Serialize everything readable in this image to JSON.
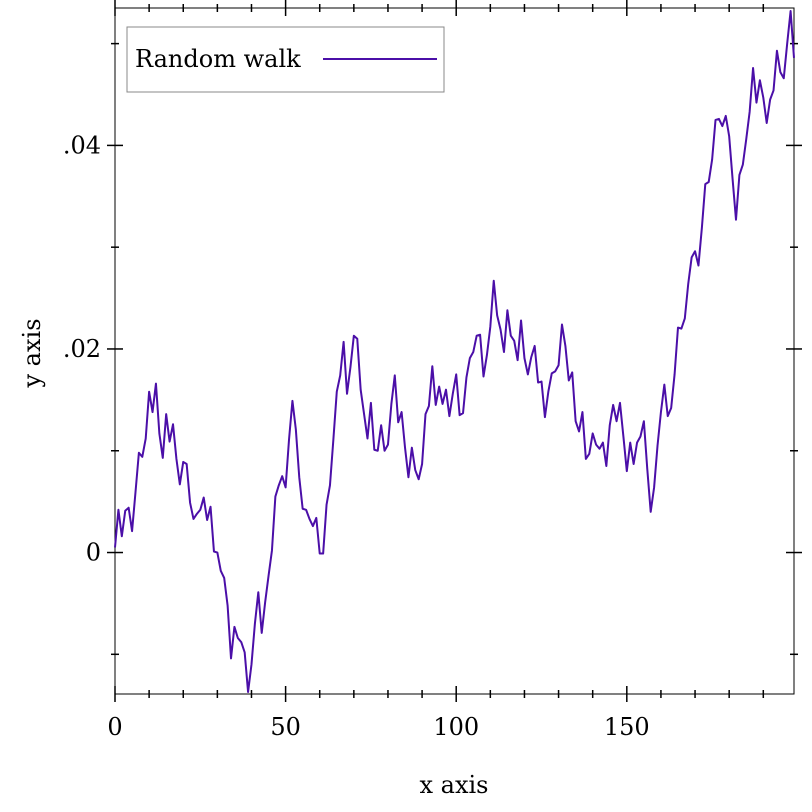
{
  "chart_data": {
    "type": "line",
    "xlabel": "x axis",
    "ylabel": "y axis",
    "xlim": [
      0,
      199
    ],
    "ylim": [
      -0.0139,
      0.0535
    ],
    "x_ticks": [
      0,
      50,
      100,
      150
    ],
    "x_tick_labels": [
      "0",
      "50",
      "100",
      "150"
    ],
    "y_ticks": [
      0,
      0.02,
      0.04
    ],
    "y_tick_labels": [
      "0",
      ".02",
      ".04"
    ],
    "grid": false,
    "legend_position": "top-left",
    "series": [
      {
        "name": "Random walk",
        "color": "#4b0fa8",
        "x_start": 0,
        "x_step": 1,
        "values": [
          0.0005,
          0.0042,
          0.0016,
          0.0041,
          0.0044,
          0.0021,
          0.0059,
          0.0098,
          0.0094,
          0.0112,
          0.0158,
          0.0138,
          0.0166,
          0.0117,
          0.0093,
          0.0136,
          0.0109,
          0.0126,
          0.0092,
          0.0067,
          0.0089,
          0.0087,
          0.0049,
          0.0033,
          0.0038,
          0.0042,
          0.0054,
          0.0032,
          0.0045,
          0.0001,
          0.0,
          -0.0018,
          -0.0025,
          -0.0052,
          -0.0104,
          -0.0073,
          -0.0084,
          -0.0088,
          -0.0098,
          -0.0137,
          -0.011,
          -0.007,
          -0.0039,
          -0.0079,
          -0.0049,
          -0.0023,
          0.0002,
          0.0055,
          0.0066,
          0.0075,
          0.0064,
          0.0111,
          0.0149,
          0.0121,
          0.0074,
          0.0043,
          0.0042,
          0.0033,
          0.0026,
          0.0034,
          -0.0001,
          -0.0001,
          0.0047,
          0.0066,
          0.0111,
          0.0158,
          0.0174,
          0.0207,
          0.0156,
          0.0182,
          0.0213,
          0.021,
          0.016,
          0.0136,
          0.0112,
          0.0147,
          0.0101,
          0.01,
          0.0125,
          0.01,
          0.0106,
          0.0146,
          0.0174,
          0.0128,
          0.0138,
          0.0103,
          0.0074,
          0.0103,
          0.0081,
          0.0072,
          0.0087,
          0.0136,
          0.0144,
          0.0183,
          0.0145,
          0.0163,
          0.0146,
          0.016,
          0.0134,
          0.0156,
          0.0175,
          0.0135,
          0.0137,
          0.0172,
          0.0191,
          0.0197,
          0.0213,
          0.0214,
          0.0173,
          0.0194,
          0.0222,
          0.0267,
          0.0233,
          0.0219,
          0.0197,
          0.0238,
          0.0213,
          0.0208,
          0.0189,
          0.0228,
          0.0191,
          0.0175,
          0.0192,
          0.0203,
          0.0167,
          0.0168,
          0.0133,
          0.0158,
          0.0176,
          0.0178,
          0.0184,
          0.0224,
          0.0203,
          0.0169,
          0.0177,
          0.0129,
          0.0119,
          0.0138,
          0.0092,
          0.0097,
          0.0117,
          0.0106,
          0.0102,
          0.0108,
          0.0085,
          0.0125,
          0.0145,
          0.0129,
          0.0147,
          0.0114,
          0.008,
          0.0108,
          0.0087,
          0.0108,
          0.0114,
          0.0129,
          0.0082,
          0.004,
          0.0064,
          0.0105,
          0.0138,
          0.0165,
          0.0134,
          0.0142,
          0.0175,
          0.0221,
          0.022,
          0.023,
          0.0264,
          0.029,
          0.0296,
          0.0282,
          0.0319,
          0.0362,
          0.0364,
          0.0386,
          0.0425,
          0.0426,
          0.0419,
          0.0429,
          0.0409,
          0.0367,
          0.0327,
          0.0371,
          0.0381,
          0.0406,
          0.0433,
          0.0476,
          0.0442,
          0.0464,
          0.0447,
          0.0422,
          0.0445,
          0.0454,
          0.0493,
          0.0472,
          0.0466,
          0.05,
          0.0532,
          0.0486
        ]
      }
    ]
  }
}
